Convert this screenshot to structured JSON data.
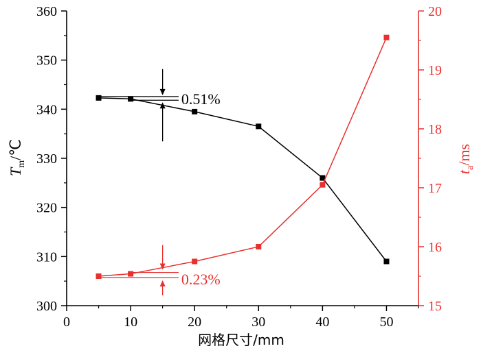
{
  "chart_data": {
    "type": "line",
    "xlabel": "网格尺寸/mm",
    "ylabel_left": {
      "symbol": "T",
      "sub": "m",
      "unit": "/℃"
    },
    "ylabel_right": {
      "symbol": "t",
      "sub": "a",
      "unit": "/ms"
    },
    "x_ticks": [
      0,
      10,
      20,
      30,
      40,
      50
    ],
    "xlim": [
      0,
      55
    ],
    "ylim_left": [
      300,
      360
    ],
    "y_ticks_left": [
      300,
      310,
      320,
      330,
      340,
      350,
      360
    ],
    "ylim_right": [
      15,
      20
    ],
    "y_ticks_right": [
      15,
      16,
      17,
      18,
      19,
      20
    ],
    "series": [
      {
        "axis": "left",
        "color": "#000000",
        "marker": "square",
        "x": [
          5,
          10,
          20,
          30,
          40,
          50
        ],
        "values": [
          342.3,
          342.1,
          339.5,
          336.5,
          326.0,
          309.0
        ]
      },
      {
        "axis": "right",
        "color": "#e8302e",
        "marker": "square",
        "x": [
          5,
          10,
          20,
          30,
          40,
          50
        ],
        "values": [
          15.5,
          15.54,
          15.75,
          16.0,
          17.05,
          19.55
        ]
      }
    ],
    "annotations": [
      {
        "text": "0.51%",
        "axis": "left",
        "color": "#000000"
      },
      {
        "text": "0.23%",
        "axis": "right",
        "color": "#e8302e"
      }
    ],
    "grid": false,
    "legend": "none"
  }
}
